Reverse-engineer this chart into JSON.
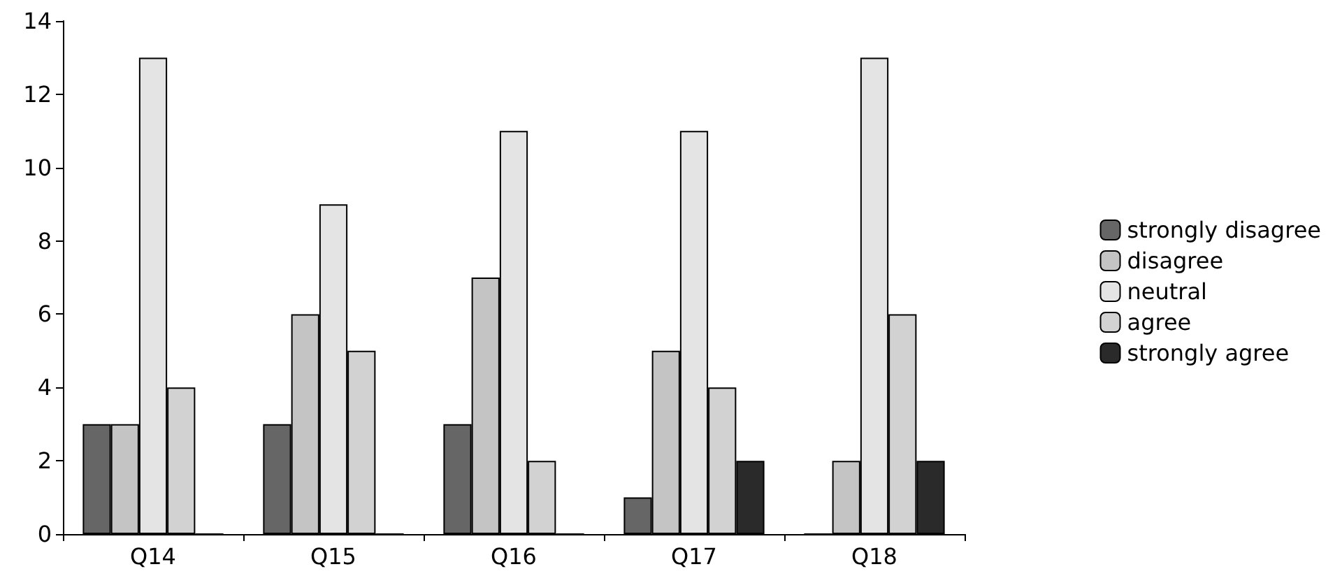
{
  "chart_data": {
    "type": "bar",
    "categories": [
      "Q14",
      "Q15",
      "Q16",
      "Q17",
      "Q18"
    ],
    "series": [
      {
        "name": "strongly disagree",
        "color": "#666666",
        "values": [
          3,
          3,
          3,
          1,
          0
        ]
      },
      {
        "name": "disagree",
        "color": "#c4c4c4",
        "values": [
          3,
          6,
          7,
          5,
          2
        ]
      },
      {
        "name": "neutral",
        "color": "#e4e4e4",
        "values": [
          13,
          9,
          11,
          11,
          13
        ]
      },
      {
        "name": "agree",
        "color": "#d2d2d2",
        "values": [
          4,
          5,
          2,
          4,
          6
        ]
      },
      {
        "name": "strongly agree",
        "color": "#2a2a2a",
        "values": [
          0,
          0,
          0,
          2,
          2
        ]
      }
    ],
    "ylim": [
      0,
      14
    ],
    "yticks": [
      0,
      2,
      4,
      6,
      8,
      10,
      12,
      14
    ],
    "grid": false,
    "legend": "right"
  }
}
